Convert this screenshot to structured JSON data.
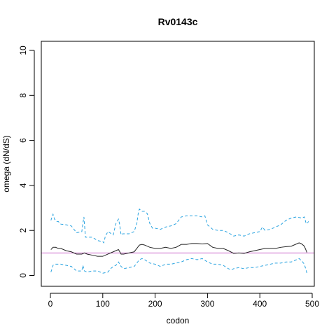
{
  "chart_data": {
    "type": "line",
    "title": "Rv0143c",
    "xlabel": "codon",
    "ylabel": "omega (dN/dS)",
    "xlim": [
      0,
      500
    ],
    "ylim": [
      0,
      10
    ],
    "x_ticks": [
      0,
      100,
      200,
      300,
      400,
      500
    ],
    "y_ticks": [
      0,
      2,
      4,
      6,
      8,
      10
    ],
    "reference_line": {
      "y": 1,
      "color": "#cc66cc"
    },
    "series": [
      {
        "role": "upper",
        "color": "#29a3e0",
        "dash": true,
        "x": [
          1,
          5,
          8,
          12,
          15,
          20,
          30,
          40,
          50,
          60,
          62,
          64,
          67,
          70,
          80,
          90,
          100,
          102,
          105,
          110,
          120,
          125,
          130,
          132,
          135,
          138,
          140,
          150,
          160,
          165,
          168,
          170,
          175,
          180,
          185,
          190,
          195,
          198,
          200,
          210,
          220,
          230,
          240,
          250,
          260,
          270,
          280,
          290,
          295,
          300,
          310,
          320,
          330,
          340,
          350,
          360,
          370,
          380,
          390,
          400,
          405,
          410,
          420,
          430,
          440,
          450,
          460,
          470,
          480,
          485,
          488,
          490,
          493
        ],
        "y": [
          2.45,
          2.72,
          2.5,
          2.4,
          2.4,
          2.28,
          2.25,
          2.2,
          1.9,
          1.95,
          2.3,
          2.6,
          1.7,
          1.7,
          1.7,
          1.55,
          1.5,
          1.45,
          1.75,
          1.95,
          1.8,
          2.3,
          2.5,
          2.3,
          1.8,
          1.85,
          1.85,
          1.85,
          1.95,
          2.3,
          2.8,
          2.95,
          2.85,
          2.85,
          2.75,
          2.3,
          2.1,
          2.1,
          2.1,
          2.05,
          2.15,
          2.2,
          2.3,
          2.6,
          2.65,
          2.65,
          2.65,
          2.6,
          2.65,
          2.25,
          2.05,
          2.0,
          2.0,
          1.9,
          1.75,
          1.8,
          1.75,
          1.85,
          1.9,
          1.95,
          2.15,
          2.0,
          2.05,
          2.15,
          2.25,
          2.45,
          2.55,
          2.6,
          2.55,
          2.6,
          2.35,
          2.3,
          2.4
        ]
      },
      {
        "role": "estimate",
        "color": "#222222",
        "dash": false,
        "x": [
          1,
          5,
          10,
          15,
          20,
          30,
          40,
          50,
          60,
          65,
          70,
          80,
          90,
          100,
          110,
          120,
          125,
          130,
          135,
          140,
          150,
          160,
          165,
          170,
          175,
          180,
          190,
          200,
          210,
          220,
          230,
          240,
          250,
          260,
          270,
          280,
          290,
          300,
          310,
          320,
          330,
          340,
          350,
          360,
          370,
          380,
          390,
          400,
          410,
          420,
          430,
          440,
          450,
          460,
          470,
          475,
          480,
          485,
          490
        ],
        "y": [
          1.15,
          1.25,
          1.25,
          1.2,
          1.2,
          1.1,
          1.05,
          0.95,
          0.95,
          1.0,
          0.95,
          0.9,
          0.85,
          0.85,
          0.95,
          1.05,
          1.1,
          1.15,
          0.95,
          0.95,
          1.0,
          1.05,
          1.2,
          1.35,
          1.38,
          1.35,
          1.25,
          1.2,
          1.2,
          1.25,
          1.2,
          1.25,
          1.38,
          1.38,
          1.42,
          1.42,
          1.4,
          1.42,
          1.25,
          1.2,
          1.2,
          1.1,
          0.98,
          1.0,
          0.98,
          1.05,
          1.1,
          1.15,
          1.2,
          1.2,
          1.2,
          1.25,
          1.28,
          1.3,
          1.4,
          1.45,
          1.4,
          1.3,
          1.02
        ]
      },
      {
        "role": "lower",
        "color": "#29a3e0",
        "dash": true,
        "x": [
          1,
          5,
          10,
          20,
          30,
          40,
          50,
          60,
          62,
          65,
          70,
          80,
          90,
          100,
          110,
          115,
          120,
          125,
          130,
          135,
          140,
          150,
          160,
          165,
          170,
          175,
          180,
          190,
          200,
          210,
          220,
          230,
          240,
          250,
          260,
          270,
          280,
          290,
          300,
          310,
          320,
          330,
          340,
          345,
          350,
          360,
          370,
          380,
          390,
          400,
          410,
          420,
          430,
          440,
          450,
          460,
          470,
          475,
          480,
          485,
          490,
          493
        ],
        "y": [
          0.15,
          0.45,
          0.5,
          0.5,
          0.45,
          0.4,
          0.2,
          0.2,
          0.45,
          0.2,
          0.15,
          0.2,
          0.2,
          0.1,
          0.15,
          0.3,
          0.4,
          0.45,
          0.6,
          0.4,
          0.3,
          0.35,
          0.4,
          0.55,
          0.7,
          0.75,
          0.7,
          0.55,
          0.5,
          0.4,
          0.5,
          0.5,
          0.55,
          0.6,
          0.7,
          0.75,
          0.7,
          0.75,
          0.6,
          0.5,
          0.5,
          0.45,
          0.3,
          0.25,
          0.3,
          0.35,
          0.3,
          0.35,
          0.35,
          0.4,
          0.45,
          0.5,
          0.55,
          0.55,
          0.6,
          0.6,
          0.7,
          0.75,
          0.65,
          0.5,
          0.1,
          0.05
        ]
      }
    ]
  }
}
